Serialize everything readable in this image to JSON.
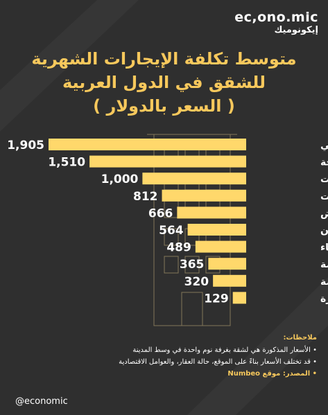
{
  "brand": {
    "name": "ec,ono.mic",
    "name_ar": "إيكونوميك"
  },
  "title": {
    "line1": "متوسط تكلفة الإيجارات الشهرية",
    "line2": "للشقق في الدول العربية",
    "line3": "( السعر بالدولار )"
  },
  "colors": {
    "background": "#2f2f2f",
    "accent": "#f7c85c",
    "bar": "#ffd86b",
    "text": "#ffffff"
  },
  "chart_data": {
    "type": "bar",
    "orientation": "horizontal",
    "categories": [
      "دبي",
      "الدوحة",
      "بيروت",
      "الكويت",
      "الرياض",
      "عمّان",
      "الدار البيضاء",
      "الجزائر العاصمة",
      "تونس العاصمة",
      "القاهرة"
    ],
    "values": [
      1905,
      1510,
      1000,
      812,
      666,
      564,
      489,
      365,
      320,
      129
    ],
    "value_labels": [
      "1,905",
      "1,510",
      "1,000",
      "812",
      "666",
      "564",
      "489",
      "365",
      "320",
      "129"
    ],
    "grid": false
  },
  "notes": {
    "heading": "ملاحظات:",
    "items": [
      "• الأسعار المذكورة هي لشقة بغرفة نوم واحدة في وسط المدينة",
      "• قد تختلف الأسعار بناءً على الموقع، حالة العقار، والعوامل الاقتصادية"
    ],
    "source": "• المصدر: موقع Numbeo"
  },
  "footer": {
    "handle": "@economic"
  }
}
